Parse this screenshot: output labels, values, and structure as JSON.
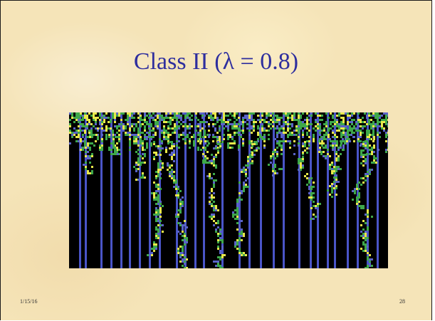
{
  "slide": {
    "title": "Class II (λ = 0.8)",
    "footer_date": "1/15/16",
    "page_number": "28"
  },
  "figure": {
    "description_icon": "cellular-automaton-evolution-image",
    "colors": {
      "background": "#000000",
      "stable_column": "#4a55c8",
      "active_cell_yellow": "#e8e84a",
      "active_cell_green": "#3ea84a",
      "active_cell_blue": "#5a63c8"
    }
  }
}
